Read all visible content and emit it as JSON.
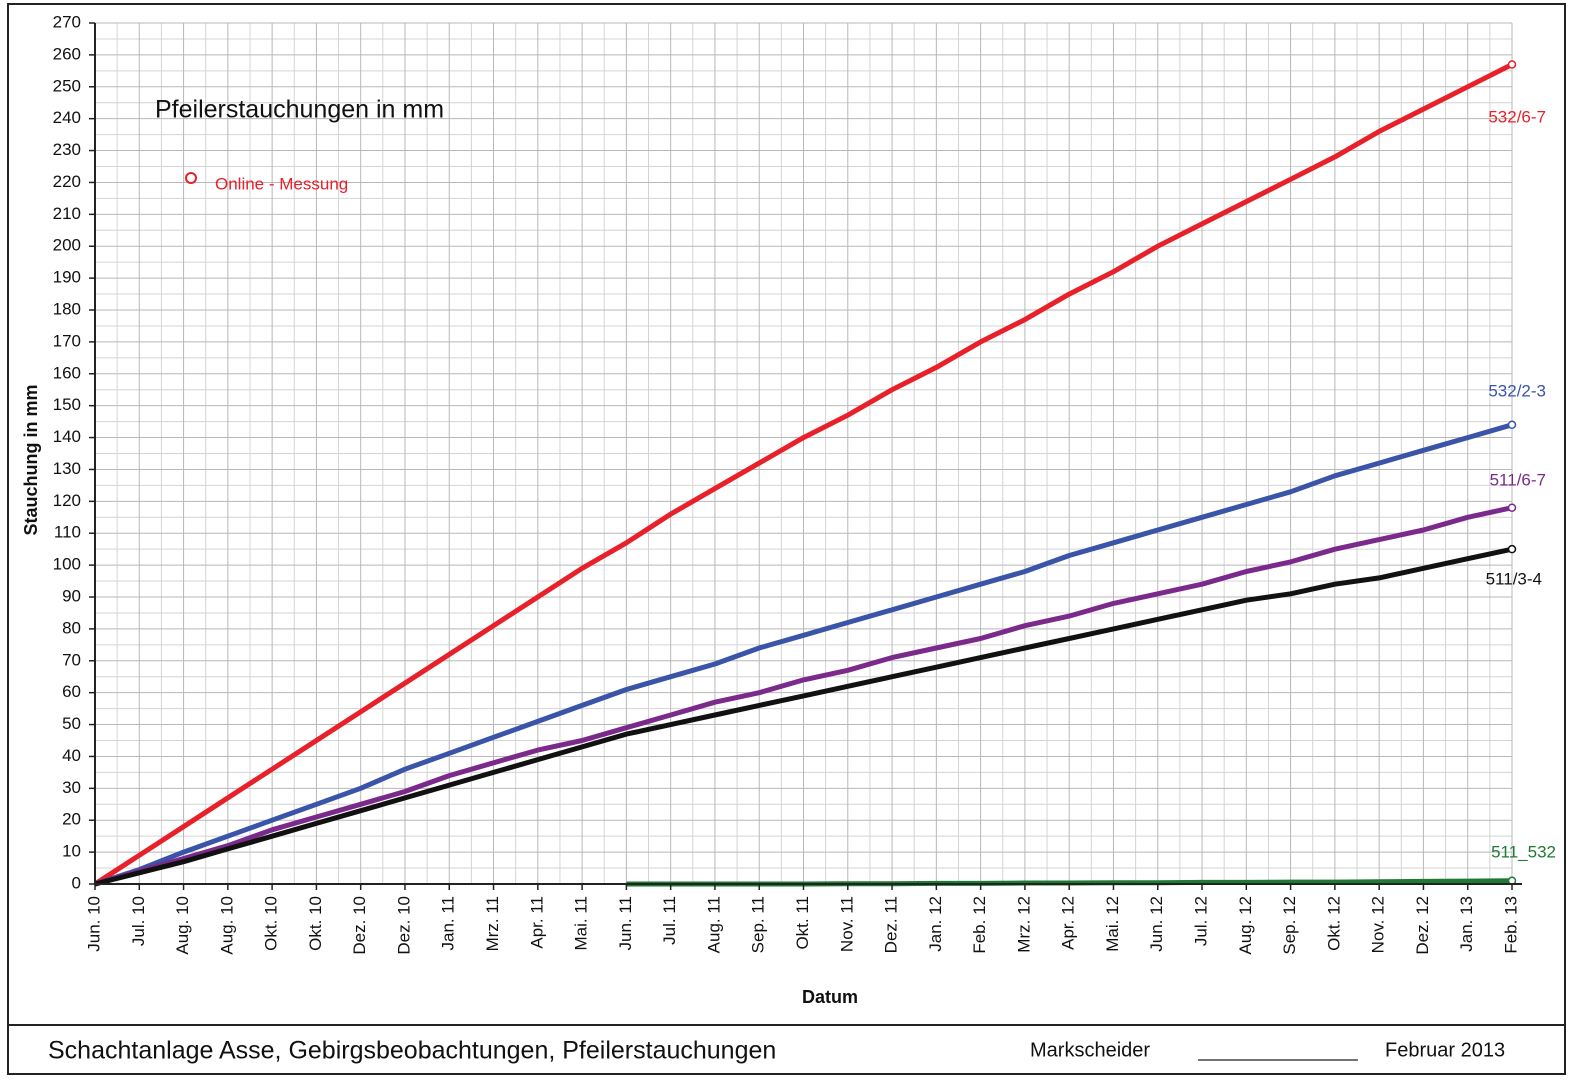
{
  "chart_data": {
    "type": "line",
    "title": "Pfeilerstauchungen in mm",
    "x_label": "Datum",
    "y_label": "Stauchung in mm",
    "marker_label": "Online - Messung",
    "marker_color": "#e8202a",
    "categories": [
      "Jun. 10",
      "Jul. 10",
      "Aug. 10",
      "Aug. 10",
      "Okt. 10",
      "Okt. 10",
      "Dez. 10",
      "Dez. 10",
      "Jan. 11",
      "Mrz. 11",
      "Apr. 11",
      "Mai. 11",
      "Jun. 11",
      "Jul. 11",
      "Aug. 11",
      "Sep. 11",
      "Okt. 11",
      "Nov. 11",
      "Dez. 11",
      "Jan. 12",
      "Feb. 12",
      "Mrz. 12",
      "Apr. 12",
      "Mai. 12",
      "Jun. 12",
      "Jul. 12",
      "Aug. 12",
      "Sep. 12",
      "Okt. 12",
      "Nov. 12",
      "Dez. 12",
      "Jan. 13",
      "Feb. 13"
    ],
    "series": [
      {
        "name": "532/6-7",
        "color": "#e8202a",
        "values": [
          0,
          9,
          18,
          27,
          36,
          45,
          54,
          63,
          72,
          81,
          90,
          99,
          107,
          116,
          124,
          132,
          140,
          147,
          155,
          162,
          170,
          177,
          185,
          192,
          200,
          207,
          214,
          221,
          228,
          236,
          243,
          250,
          257
        ]
      },
      {
        "name": "532/2-3",
        "color": "#3a55a8",
        "values": [
          0,
          4.5,
          10,
          15,
          20,
          25,
          30,
          36,
          41,
          46,
          51,
          56,
          61,
          65,
          69,
          74,
          78,
          82,
          86,
          90,
          94,
          98,
          103,
          107,
          111,
          115,
          119,
          123,
          128,
          132,
          136,
          140,
          144
        ]
      },
      {
        "name": "511/6-7",
        "color": "#7b2a8c",
        "values": [
          0,
          4,
          8,
          12,
          17,
          21,
          25,
          29,
          34,
          38,
          42,
          45,
          49,
          53,
          57,
          60,
          64,
          67,
          71,
          74,
          77,
          81,
          84,
          88,
          91,
          94,
          98,
          101,
          105,
          108,
          111,
          115,
          118
        ]
      },
      {
        "name": "511/3-4",
        "color": "#111111",
        "values": [
          0,
          3.5,
          7,
          11,
          15,
          19,
          23,
          27,
          31,
          35,
          39,
          43,
          47,
          50,
          53,
          56,
          59,
          62,
          65,
          68,
          71,
          74,
          77,
          80,
          83,
          86,
          89,
          91,
          94,
          96,
          99,
          102,
          105
        ]
      },
      {
        "name": "511_532",
        "color": "#1e7a32",
        "values": [
          null,
          null,
          null,
          null,
          null,
          null,
          null,
          null,
          null,
          null,
          null,
          null,
          0,
          0,
          0,
          0,
          0,
          0.1,
          0.1,
          0.2,
          0.2,
          0.3,
          0.3,
          0.4,
          0.4,
          0.5,
          0.5,
          0.6,
          0.6,
          0.7,
          0.8,
          0.9,
          1
        ]
      }
    ],
    "ylim": [
      0,
      270
    ],
    "yticks": [
      0,
      10,
      20,
      30,
      40,
      50,
      60,
      70,
      80,
      90,
      100,
      110,
      120,
      130,
      140,
      150,
      160,
      170,
      180,
      190,
      200,
      210,
      220,
      230,
      240,
      250,
      260,
      270
    ],
    "grid": true
  },
  "footer": {
    "left": "Schachtanlage Asse, Gebirgsbeobachtungen, Pfeilerstauchungen",
    "middle": "Markscheider",
    "right": "Februar 2013"
  }
}
